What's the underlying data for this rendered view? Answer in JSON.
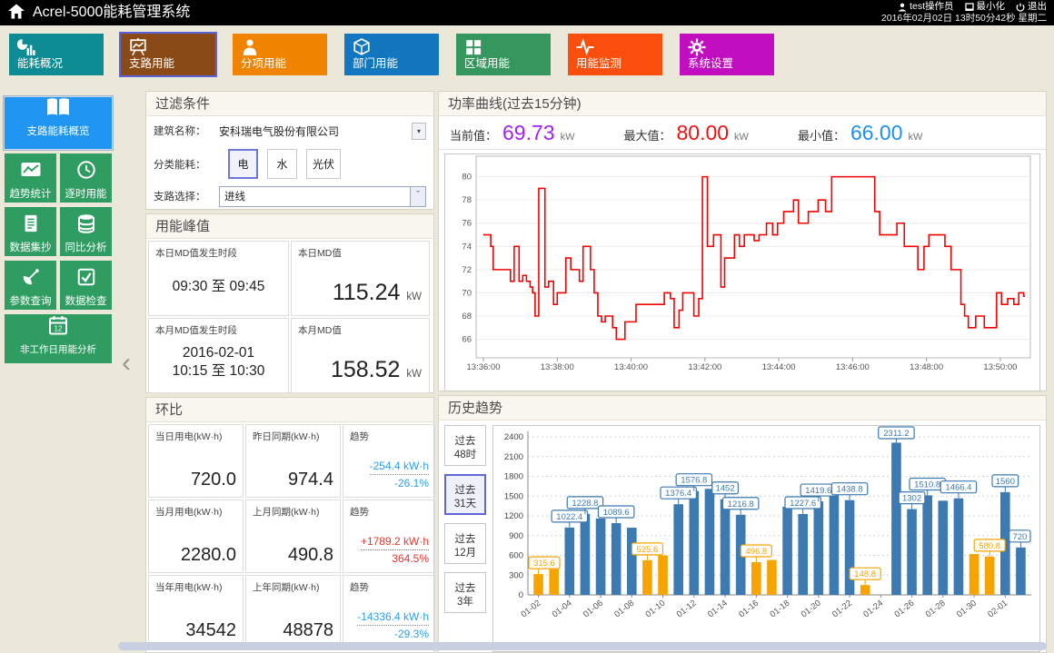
{
  "header": {
    "title": "Acrel-5000能耗管理系统",
    "user": "test操作员",
    "minimize": "最小化",
    "logout": "退出",
    "datetime": "2016年02月02日 13时50分42秒 星期二"
  },
  "nav": {
    "items": [
      {
        "label": "能耗概况",
        "color": "#0d8c94",
        "icon": "energy-overview-icon",
        "active": false
      },
      {
        "label": "支路用能",
        "color": "#8a4a17",
        "icon": "branch-energy-icon",
        "active": true
      },
      {
        "label": "分项用能",
        "color": "#f08300",
        "icon": "subentry-energy-icon",
        "active": false
      },
      {
        "label": "部门用能",
        "color": "#1377c0",
        "icon": "department-energy-icon",
        "active": false
      },
      {
        "label": "区域用能",
        "color": "#35965e",
        "icon": "area-energy-icon",
        "active": false
      },
      {
        "label": "用能监测",
        "color": "#fa4e0e",
        "icon": "energy-monitor-icon",
        "active": false
      },
      {
        "label": "系统设置",
        "color": "#c00ec0",
        "icon": "system-settings-icon",
        "active": false
      }
    ]
  },
  "sidebar": {
    "items": [
      {
        "label": "支路能耗概览",
        "icon": "book-icon",
        "active": true,
        "color": "#2095f2"
      },
      {
        "label": "趋势统计",
        "icon": "trend-chart-icon",
        "active": false,
        "color": "#2f9c62"
      },
      {
        "label": "逐时用能",
        "icon": "clock-icon",
        "active": false,
        "color": "#2f9c62"
      },
      {
        "label": "数据集抄",
        "icon": "document-icon",
        "active": false,
        "color": "#2f9c62"
      },
      {
        "label": "同比分析",
        "icon": "database-icon",
        "active": false,
        "color": "#2f9c62"
      },
      {
        "label": "参数查询",
        "icon": "satellite-icon",
        "active": false,
        "color": "#2f9c62"
      },
      {
        "label": "数据检查",
        "icon": "check-square-icon",
        "active": false,
        "color": "#2f9c62"
      },
      {
        "label": "非工作日用能分析",
        "icon": "calendar-icon",
        "active": false,
        "color": "#2f9c62"
      }
    ]
  },
  "filter": {
    "title": "过滤条件",
    "building_label": "建筑名称：",
    "building_value": "安科瑞电气股份有限公司",
    "category_label": "分类能耗：",
    "categories": [
      "电",
      "水",
      "光伏"
    ],
    "selected_category": "电",
    "branch_label": "支路选择：",
    "branch_value": "进线"
  },
  "peak": {
    "title": "用能峰值",
    "day_period_label": "本日MD值发生时段",
    "day_period_value": "09:30 至 09:45",
    "day_md_label": "本日MD值",
    "day_md_value": "115.24",
    "day_md_unit": "kW",
    "month_period_label": "本月MD值发生时段",
    "month_period_date": "2016-02-01",
    "month_period_time": "10:15 至 10:30",
    "month_md_label": "本月MD值",
    "month_md_value": "158.52",
    "month_md_unit": "kW"
  },
  "ring": {
    "title": "环比",
    "rows": [
      {
        "c1_label": "当日用电(kW·h)",
        "c1_value": "720.0",
        "c2_label": "昨日同期(kW·h)",
        "c2_value": "974.4",
        "trend_label": "趋势",
        "trend_delta": "-254.4 kW·h",
        "trend_pct": "-26.1%",
        "trend_color": "#2b9ff0"
      },
      {
        "c1_label": "当月用电(kW·h)",
        "c1_value": "2280.0",
        "c2_label": "上月同期(kW·h)",
        "c2_value": "490.8",
        "trend_label": "趋势",
        "trend_delta": "+1789.2 kW·h",
        "trend_pct": "364.5%",
        "trend_color": "#f0342c"
      },
      {
        "c1_label": "当年用电(kW·h)",
        "c1_value": "34542",
        "c2_label": "上年同期(kW·h)",
        "c2_value": "48878",
        "trend_label": "趋势",
        "trend_delta": "-14336.4 kW·h",
        "trend_pct": "-29.3%",
        "trend_color": "#2b9ff0"
      }
    ]
  },
  "power": {
    "title": "功率曲线(过去15分钟)",
    "stats": [
      {
        "label": "当前值：",
        "value": "69.73",
        "unit": "kW",
        "color": "#a21ff5"
      },
      {
        "label": "最大值：",
        "value": "80.00",
        "unit": "kW",
        "color": "#f50f0f"
      },
      {
        "label": "最小值：",
        "value": "66.00",
        "unit": "kW",
        "color": "#1d8ff2"
      }
    ]
  },
  "history": {
    "title": "历史趋势",
    "buttons": [
      {
        "line1": "过去",
        "line2": "48时",
        "active": false
      },
      {
        "line1": "过去",
        "line2": "31天",
        "active": true
      },
      {
        "line1": "过去",
        "line2": "12月",
        "active": false
      },
      {
        "line1": "过去",
        "line2": "3年",
        "active": false
      }
    ]
  },
  "chart_data": [
    {
      "type": "line",
      "title": "功率曲线(过去15分钟)",
      "ylabel": "kW",
      "color": "#f50000",
      "ylim": [
        64.4,
        81.3
      ],
      "y_ticks": [
        66,
        68,
        70,
        72,
        74,
        76,
        78,
        80
      ],
      "t_max": 880,
      "x_ticks": [
        {
          "t": 0,
          "label": "13:36:00"
        },
        {
          "t": 120,
          "label": "13:38:00"
        },
        {
          "t": 240,
          "label": "13:40:00"
        },
        {
          "t": 360,
          "label": "13:42:00"
        },
        {
          "t": 480,
          "label": "13:44:00"
        },
        {
          "t": 600,
          "label": "13:46:00"
        },
        {
          "t": 720,
          "label": "13:48:00"
        },
        {
          "t": 840,
          "label": "13:50:00"
        }
      ],
      "points": [
        [
          0,
          75
        ],
        [
          12,
          74
        ],
        [
          16,
          72
        ],
        [
          44,
          71
        ],
        [
          50,
          74
        ],
        [
          58,
          71
        ],
        [
          64,
          71.5
        ],
        [
          70,
          71
        ],
        [
          76,
          70.5
        ],
        [
          80,
          70
        ],
        [
          84,
          68
        ],
        [
          90,
          79
        ],
        [
          100,
          70.5
        ],
        [
          106,
          71
        ],
        [
          114,
          69
        ],
        [
          120,
          70
        ],
        [
          134,
          73
        ],
        [
          142,
          72
        ],
        [
          156,
          71
        ],
        [
          162,
          74
        ],
        [
          174,
          72
        ],
        [
          180,
          70
        ],
        [
          186,
          68
        ],
        [
          192,
          67.5
        ],
        [
          198,
          68
        ],
        [
          210,
          67
        ],
        [
          216,
          66
        ],
        [
          230,
          67.5
        ],
        [
          248,
          69
        ],
        [
          294,
          70
        ],
        [
          304,
          69.5
        ],
        [
          310,
          67
        ],
        [
          318,
          68.5
        ],
        [
          324,
          70
        ],
        [
          342,
          68
        ],
        [
          350,
          69.5
        ],
        [
          356,
          80
        ],
        [
          364,
          74
        ],
        [
          374,
          75
        ],
        [
          386,
          70.5
        ],
        [
          392,
          73
        ],
        [
          408,
          75
        ],
        [
          416,
          74
        ],
        [
          424,
          75
        ],
        [
          440,
          74.5
        ],
        [
          448,
          75
        ],
        [
          460,
          76
        ],
        [
          470,
          75
        ],
        [
          478,
          76
        ],
        [
          488,
          77
        ],
        [
          504,
          78
        ],
        [
          512,
          76
        ],
        [
          528,
          77
        ],
        [
          544,
          78
        ],
        [
          556,
          77
        ],
        [
          566,
          80
        ],
        [
          636,
          77
        ],
        [
          644,
          75
        ],
        [
          672,
          76
        ],
        [
          684,
          74
        ],
        [
          706,
          72
        ],
        [
          716,
          74
        ],
        [
          724,
          75
        ],
        [
          750,
          74
        ],
        [
          760,
          72
        ],
        [
          776,
          69
        ],
        [
          782,
          68
        ],
        [
          788,
          67
        ],
        [
          800,
          68
        ],
        [
          814,
          67
        ],
        [
          834,
          70
        ],
        [
          842,
          69
        ],
        [
          852,
          69.5
        ],
        [
          862,
          69
        ],
        [
          870,
          70
        ],
        [
          878,
          69.7
        ]
      ]
    },
    {
      "type": "bar",
      "title": "历史趋势(过去31天, kW·h)",
      "ylim": [
        0,
        2400
      ],
      "y_ticks": [
        0,
        300,
        600,
        900,
        1200,
        1500,
        1800,
        2100,
        2400
      ],
      "colors": {
        "workday": "#3c7ab1",
        "weekend": "#f7a400"
      },
      "bars": [
        {
          "date": "01-02",
          "value": 315.6,
          "weekend": true,
          "label": "315.6"
        },
        {
          "date": "01-03",
          "value": 390,
          "weekend": true,
          "label": null
        },
        {
          "date": "01-04",
          "value": 1022.4,
          "weekend": false,
          "label": "1022.4"
        },
        {
          "date": "01-05",
          "value": 1228.8,
          "weekend": false,
          "label": "1228.8"
        },
        {
          "date": "01-06",
          "value": 1160,
          "weekend": false,
          "label": null
        },
        {
          "date": "01-07",
          "value": 1089.6,
          "weekend": false,
          "label": "1089.6"
        },
        {
          "date": "01-08",
          "value": 1020,
          "weekend": false,
          "label": null
        },
        {
          "date": "01-09",
          "value": 525.6,
          "weekend": true,
          "label": "525.6"
        },
        {
          "date": "01-10",
          "value": 600,
          "weekend": true,
          "label": null
        },
        {
          "date": "01-11",
          "value": 1376.4,
          "weekend": false,
          "label": "1376.4"
        },
        {
          "date": "01-12",
          "value": 1576.8,
          "weekend": false,
          "label": "1576.8"
        },
        {
          "date": "01-13",
          "value": 1610,
          "weekend": false,
          "label": null
        },
        {
          "date": "01-14",
          "value": 1452,
          "weekend": false,
          "label": "1452"
        },
        {
          "date": "01-15",
          "value": 1216.8,
          "weekend": false,
          "label": "1216.8"
        },
        {
          "date": "01-16",
          "value": 496.8,
          "weekend": true,
          "label": "496.8"
        },
        {
          "date": "01-17",
          "value": 530,
          "weekend": true,
          "label": null
        },
        {
          "date": "01-18",
          "value": 1340,
          "weekend": false,
          "label": null
        },
        {
          "date": "01-19",
          "value": 1227.6,
          "weekend": false,
          "label": "1227.6"
        },
        {
          "date": "01-20",
          "value": 1419.6,
          "weekend": false,
          "label": "1419.6"
        },
        {
          "date": "01-21",
          "value": 1550,
          "weekend": false,
          "label": null
        },
        {
          "date": "01-22",
          "value": 1438.8,
          "weekend": false,
          "label": "1438.8"
        },
        {
          "date": "01-23",
          "value": 148.8,
          "weekend": true,
          "label": "148.8"
        },
        {
          "date": "01-24",
          "value": 0,
          "weekend": true,
          "label": null
        },
        {
          "date": "01-25",
          "value": 2311.2,
          "weekend": false,
          "label": "2311.2"
        },
        {
          "date": "01-26",
          "value": 1302,
          "weekend": false,
          "label": "1302"
        },
        {
          "date": "01-27",
          "value": 1510.8,
          "weekend": false,
          "label": "1510.8"
        },
        {
          "date": "01-28",
          "value": 1430,
          "weekend": false,
          "label": null
        },
        {
          "date": "01-29",
          "value": 1466.4,
          "weekend": false,
          "label": "1466.4"
        },
        {
          "date": "01-30",
          "value": 620,
          "weekend": true,
          "label": null
        },
        {
          "date": "01-31",
          "value": 580.8,
          "weekend": true,
          "label": "580.8"
        },
        {
          "date": "02-01",
          "value": 1560,
          "weekend": false,
          "label": "1560"
        },
        {
          "date": "02-02",
          "value": 720,
          "weekend": false,
          "label": "720"
        }
      ]
    }
  ]
}
